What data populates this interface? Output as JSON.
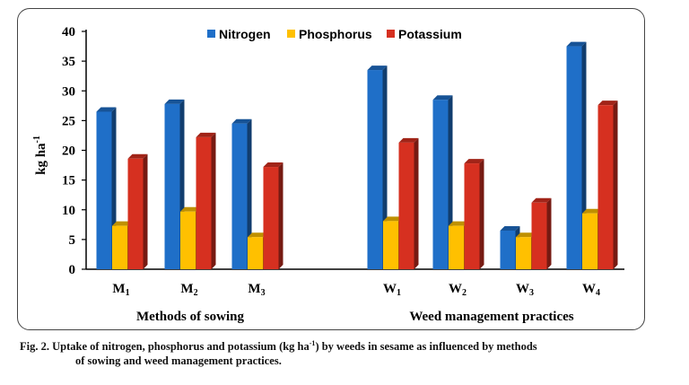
{
  "chart_data": {
    "type": "bar",
    "ylabel": "kg ha",
    "ylabel_sup": "-1",
    "ylim": [
      0,
      40
    ],
    "yticks": [
      0,
      5,
      10,
      15,
      20,
      25,
      30,
      35,
      40
    ],
    "legend_position": "top-center",
    "groups": [
      {
        "label": "Methods of sowing",
        "categories": [
          {
            "base": "M",
            "sub": "1"
          },
          {
            "base": "M",
            "sub": "2"
          },
          {
            "base": "M",
            "sub": "3"
          }
        ]
      },
      {
        "label": "Weed management practices",
        "categories": [
          {
            "base": "W",
            "sub": "1"
          },
          {
            "base": "W",
            "sub": "2"
          },
          {
            "base": "W",
            "sub": "3"
          },
          {
            "base": "W",
            "sub": "4"
          }
        ]
      }
    ],
    "series": [
      {
        "name": "Nitrogen",
        "color": "#1f6fc8",
        "values": [
          26.5,
          27.8,
          24.5,
          33.5,
          28.5,
          6.5,
          37.5
        ]
      },
      {
        "name": "Phosphorus",
        "color": "#ffc000",
        "values": [
          7.3,
          9.7,
          5.4,
          8.1,
          7.3,
          5.4,
          9.4
        ]
      },
      {
        "name": "Potassium",
        "color": "#d63020",
        "values": [
          18.6,
          22.2,
          17.2,
          21.3,
          17.8,
          11.2,
          27.6
        ]
      }
    ]
  },
  "caption": {
    "line1_pre": "Fig. 2. Uptake of nitrogen, phosphorus and potassium (kg ha",
    "line1_sup": "-1",
    "line1_post": ") by weeds in sesame as influenced by methods",
    "line2": "of sowing and weed management practices."
  }
}
